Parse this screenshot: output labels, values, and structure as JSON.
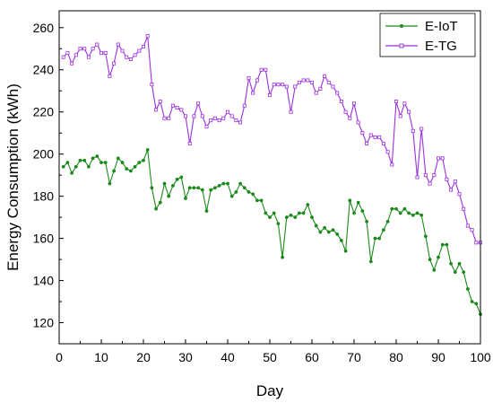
{
  "chart_data": {
    "type": "line",
    "xlabel": "Day",
    "ylabel": "Energy Consumption (kWh)",
    "xlim": [
      0,
      100
    ],
    "ylim": [
      110,
      268
    ],
    "x_ticks": [
      0,
      10,
      20,
      30,
      40,
      50,
      60,
      70,
      80,
      90,
      100
    ],
    "y_ticks": [
      120,
      140,
      160,
      180,
      200,
      220,
      240,
      260
    ],
    "grid": false,
    "legend_position": "top-right",
    "series": [
      {
        "name": "E-IoT",
        "color": "#1a8a1a",
        "marker": "circle",
        "x": [
          1,
          2,
          3,
          4,
          5,
          6,
          7,
          8,
          9,
          10,
          11,
          12,
          13,
          14,
          15,
          16,
          17,
          18,
          19,
          20,
          21,
          22,
          23,
          24,
          25,
          26,
          27,
          28,
          29,
          30,
          31,
          32,
          33,
          34,
          35,
          36,
          37,
          38,
          39,
          40,
          41,
          42,
          43,
          44,
          45,
          46,
          47,
          48,
          49,
          50,
          51,
          52,
          53,
          54,
          55,
          56,
          57,
          58,
          59,
          60,
          61,
          62,
          63,
          64,
          65,
          66,
          67,
          68,
          69,
          70,
          71,
          72,
          73,
          74,
          75,
          76,
          77,
          78,
          79,
          80,
          81,
          82,
          83,
          84,
          85,
          86,
          87,
          88,
          89,
          90,
          91,
          92,
          93,
          94,
          95,
          96,
          97,
          98,
          99,
          100
        ],
        "values": [
          194,
          196,
          191,
          194,
          197,
          197,
          194,
          198,
          199,
          196,
          196,
          186,
          192,
          198,
          196,
          193,
          192,
          194,
          196,
          197,
          202,
          184,
          174,
          177,
          186,
          180,
          185,
          188,
          189,
          179,
          184,
          184,
          184,
          183,
          173,
          183,
          184,
          185,
          186,
          186,
          180,
          182,
          186,
          184,
          182,
          181,
          178,
          178,
          172,
          170,
          172,
          167,
          151,
          170,
          171,
          170,
          172,
          172,
          176,
          170,
          166,
          163,
          165,
          163,
          164,
          162,
          159,
          154,
          178,
          172,
          177,
          173,
          168,
          149,
          160,
          160,
          164,
          168,
          174,
          174,
          172,
          174,
          172,
          171,
          172,
          171,
          161,
          150,
          145,
          151,
          157,
          157,
          148,
          144,
          148,
          144,
          136,
          130,
          129,
          124
        ]
      },
      {
        "name": "E-TG",
        "color": "#9b30e0",
        "marker": "square",
        "x": [
          1,
          2,
          3,
          4,
          5,
          6,
          7,
          8,
          9,
          10,
          11,
          12,
          13,
          14,
          15,
          16,
          17,
          18,
          19,
          20,
          21,
          22,
          23,
          24,
          25,
          26,
          27,
          28,
          29,
          30,
          31,
          32,
          33,
          34,
          35,
          36,
          37,
          38,
          39,
          40,
          41,
          42,
          43,
          44,
          45,
          46,
          47,
          48,
          49,
          50,
          51,
          52,
          53,
          54,
          55,
          56,
          57,
          58,
          59,
          60,
          61,
          62,
          63,
          64,
          65,
          66,
          67,
          68,
          69,
          70,
          71,
          72,
          73,
          74,
          75,
          76,
          77,
          78,
          79,
          80,
          81,
          82,
          83,
          84,
          85,
          86,
          87,
          88,
          89,
          90,
          91,
          92,
          93,
          94,
          95,
          96,
          97,
          98,
          99,
          100
        ],
        "values": [
          246,
          248,
          243,
          247,
          250,
          250,
          246,
          250,
          252,
          248,
          248,
          237,
          243,
          252,
          249,
          246,
          245,
          247,
          249,
          251,
          256,
          233,
          221,
          225,
          217,
          217,
          223,
          222,
          221,
          218,
          205,
          218,
          224,
          218,
          213,
          216,
          217,
          216,
          217,
          220,
          218,
          216,
          215,
          223,
          236,
          229,
          235,
          240,
          240,
          228,
          233,
          233,
          233,
          232,
          220,
          232,
          234,
          235,
          235,
          234,
          229,
          231,
          237,
          234,
          232,
          229,
          225,
          220,
          217,
          224,
          215,
          210,
          205,
          209,
          208,
          208,
          205,
          201,
          195,
          225,
          218,
          224,
          220,
          211,
          189,
          212,
          190,
          186,
          190,
          198,
          198,
          188,
          183,
          187,
          181,
          174,
          166,
          164,
          158,
          158
        ]
      }
    ]
  }
}
